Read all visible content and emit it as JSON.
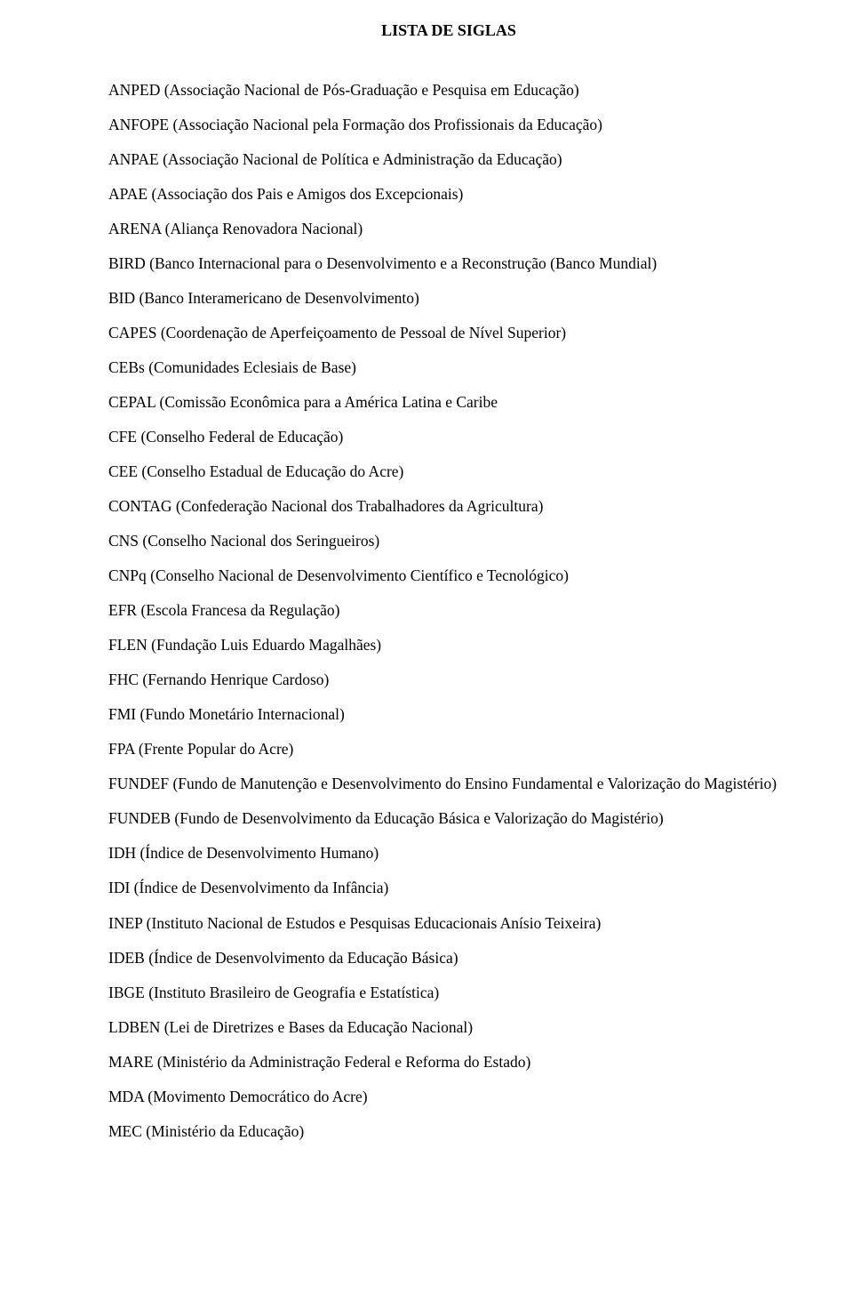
{
  "title": "LISTA DE SIGLAS",
  "entries": [
    "ANPED (Associação Nacional de Pós-Graduação e Pesquisa em Educação)",
    "ANFOPE (Associação Nacional pela Formação dos Profissionais da Educação)",
    "ANPAE (Associação Nacional de Política e Administração da Educação)",
    "APAE (Associação dos Pais e Amigos dos Excepcionais)",
    "ARENA (Aliança Renovadora Nacional)",
    "BIRD (Banco Internacional para o Desenvolvimento e a Reconstrução (Banco Mundial)",
    "BID (Banco Interamericano de Desenvolvimento)",
    "CAPES (Coordenação de Aperfeiçoamento de Pessoal de Nível Superior)",
    "CEBs (Comunidades Eclesiais de Base)",
    "CEPAL (Comissão Econômica para a América Latina e Caribe",
    "CFE (Conselho Federal de Educação)",
    "CEE (Conselho Estadual de Educação do Acre)",
    "CONTAG (Confederação Nacional dos Trabalhadores da Agricultura)",
    "CNS (Conselho Nacional dos Seringueiros)",
    "CNPq (Conselho Nacional de Desenvolvimento Científico e Tecnológico)",
    "EFR (Escola Francesa da Regulação)",
    "FLEN (Fundação Luis Eduardo Magalhães)",
    "FHC (Fernando Henrique Cardoso)",
    "FMI (Fundo Monetário Internacional)",
    "FPA (Frente Popular do Acre)",
    "FUNDEF (Fundo de Manutenção e Desenvolvimento do Ensino Fundamental e Valorização do Magistério)",
    "FUNDEB (Fundo de Desenvolvimento da Educação Básica e Valorização do Magistério)",
    "IDH (Índice de Desenvolvimento Humano)",
    "IDI (Índice de Desenvolvimento da Infância)",
    "INEP (Instituto Nacional de Estudos e Pesquisas Educacionais Anísio Teixeira)",
    "IDEB (Índice de Desenvolvimento da Educação Básica)",
    "IBGE (Instituto Brasileiro de Geografia e Estatística)",
    "LDBEN (Lei de Diretrizes e Bases da Educação Nacional)",
    "MARE (Ministério da Administração Federal e Reforma do Estado)",
    "MDA (Movimento Democrático do Acre)",
    "MEC (Ministério da Educação)"
  ]
}
